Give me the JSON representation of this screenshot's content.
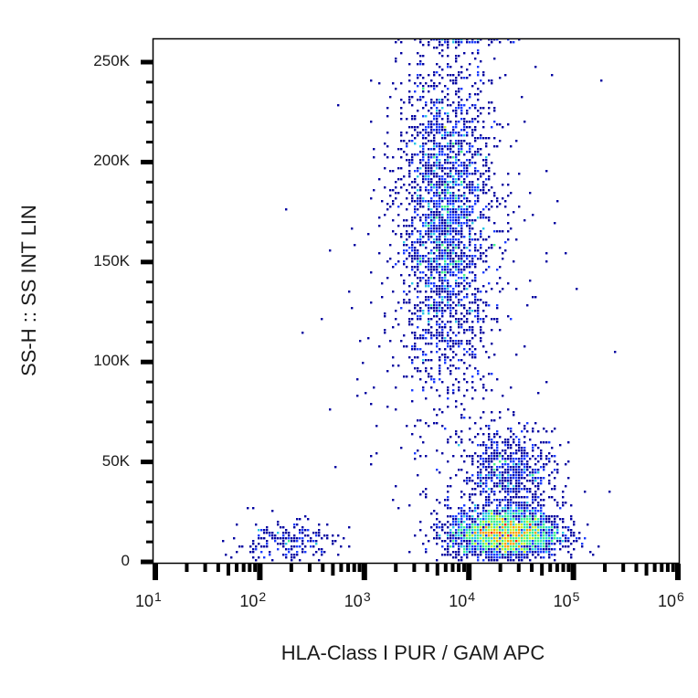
{
  "chart_data": {
    "type": "scatter",
    "subtype": "flow-cytometry-density-dot-plot",
    "title": "",
    "xlabel": "HLA-Class I PUR / GAM APC",
    "ylabel": "SS-H :: SS INT LIN",
    "x_scale": "log",
    "y_scale": "linear",
    "xlim": [
      5,
      1000000
    ],
    "ylim": [
      -3000,
      262144
    ],
    "x_ticks": [
      {
        "value": 10,
        "base": "10",
        "exp": "1"
      },
      {
        "value": 100,
        "base": "10",
        "exp": "2"
      },
      {
        "value": 1000,
        "base": "10",
        "exp": "3"
      },
      {
        "value": 10000,
        "base": "10",
        "exp": "4"
      },
      {
        "value": 100000,
        "base": "10",
        "exp": "5"
      },
      {
        "value": 1000000,
        "base": "10",
        "exp": "6"
      }
    ],
    "y_ticks": [
      {
        "value": 0,
        "label": "0"
      },
      {
        "value": 50000,
        "label": "50K"
      },
      {
        "value": 100000,
        "label": "100K"
      },
      {
        "value": 150000,
        "label": "150K"
      },
      {
        "value": 200000,
        "label": "200K"
      },
      {
        "value": 250000,
        "label": "250K"
      }
    ],
    "grid": false,
    "legend": null,
    "color_scale": [
      "#0000a0",
      "#1a3cff",
      "#28c8e6",
      "#3cf08c",
      "#c8f028",
      "#ffa000",
      "#ff2800"
    ],
    "populations": [
      {
        "name": "HLA-positive high SSC cluster",
        "x_center": 6000,
        "x_log_sd": 0.23,
        "y_center": 170000,
        "y_sd": 42000,
        "count": 2600,
        "peak_density": "medium"
      },
      {
        "name": "HLA-positive low SSC cluster (bright)",
        "x_center": 22000,
        "x_log_sd": 0.27,
        "y_center": 14000,
        "y_sd": 6500,
        "count": 2400,
        "peak_density": "high"
      },
      {
        "name": "HLA-positive mid SSC cluster",
        "x_center": 25000,
        "x_log_sd": 0.22,
        "y_center": 45000,
        "y_sd": 11000,
        "count": 650,
        "peak_density": "low"
      },
      {
        "name": "HLA-negative low SSC cluster",
        "x_center": 180,
        "x_log_sd": 0.25,
        "y_center": 9000,
        "y_sd": 6000,
        "count": 230,
        "peak_density": "low"
      },
      {
        "name": "Saturated events at SSC max",
        "x_center": 9000,
        "x_log_sd": 0.25,
        "y_center": 261000,
        "y_sd": 300,
        "count": 320,
        "peak_density": "high"
      },
      {
        "name": "Scattered background events",
        "x_center": 8000,
        "x_log_sd": 0.55,
        "y_center": 110000,
        "y_sd": 75000,
        "count": 260,
        "peak_density": "low"
      }
    ]
  }
}
